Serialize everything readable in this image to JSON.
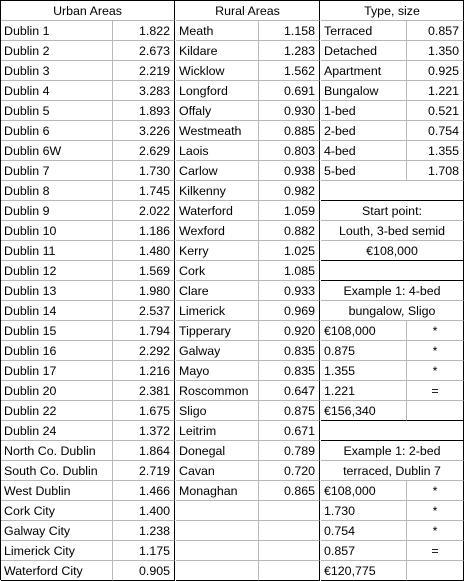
{
  "urban": {
    "header": "Urban Areas",
    "rows": [
      [
        "Dublin 1",
        "1.822"
      ],
      [
        "Dublin 2",
        "2.673"
      ],
      [
        "Dublin 3",
        "2.219"
      ],
      [
        "Dublin 4",
        "3.283"
      ],
      [
        "Dublin 5",
        "1.893"
      ],
      [
        "Dublin 6",
        "3.226"
      ],
      [
        "Dublin 6W",
        "2.629"
      ],
      [
        "Dublin 7",
        "1.730"
      ],
      [
        "Dublin 8",
        "1.745"
      ],
      [
        "Dublin 9",
        "2.022"
      ],
      [
        "Dublin 10",
        "1.186"
      ],
      [
        "Dublin 11",
        "1.480"
      ],
      [
        "Dublin 12",
        "1.569"
      ],
      [
        "Dublin 13",
        "1.980"
      ],
      [
        "Dublin 14",
        "2.537"
      ],
      [
        "Dublin 15",
        "1.794"
      ],
      [
        "Dublin 16",
        "2.292"
      ],
      [
        "Dublin 17",
        "1.216"
      ],
      [
        "Dublin 20",
        "2.381"
      ],
      [
        "Dublin 22",
        "1.675"
      ],
      [
        "Dublin 24",
        "1.372"
      ],
      [
        "North Co. Dublin",
        "1.864"
      ],
      [
        "South Co. Dublin",
        "2.719"
      ],
      [
        "West Dublin",
        "1.466"
      ],
      [
        "Cork City",
        "1.400"
      ],
      [
        "Galway City",
        "1.238"
      ],
      [
        "Limerick City",
        "1.175"
      ],
      [
        "Waterford City",
        "0.905"
      ]
    ]
  },
  "rural": {
    "header": "Rural Areas",
    "rows": [
      [
        "Meath",
        "1.158"
      ],
      [
        "Kildare",
        "1.283"
      ],
      [
        "Wicklow",
        "1.562"
      ],
      [
        "Longford",
        "0.691"
      ],
      [
        "Offaly",
        "0.930"
      ],
      [
        "Westmeath",
        "0.885"
      ],
      [
        "Laois",
        "0.803"
      ],
      [
        "Carlow",
        "0.938"
      ],
      [
        "Kilkenny",
        "0.982"
      ],
      [
        "Waterford",
        "1.059"
      ],
      [
        "Wexford",
        "0.882"
      ],
      [
        "Kerry",
        "1.025"
      ],
      [
        "Cork",
        "1.085"
      ],
      [
        "Clare",
        "0.933"
      ],
      [
        "Limerick",
        "0.969"
      ],
      [
        "Tipperary",
        "0.920"
      ],
      [
        "Galway",
        "0.835"
      ],
      [
        "Mayo",
        "0.835"
      ],
      [
        "Roscommon",
        "0.647"
      ],
      [
        "Sligo",
        "0.875"
      ],
      [
        "Leitrim",
        "0.671"
      ],
      [
        "Donegal",
        "0.789"
      ],
      [
        "Cavan",
        "0.720"
      ],
      [
        "Monaghan",
        "0.865"
      ],
      [
        "",
        ""
      ],
      [
        "",
        ""
      ],
      [
        "",
        ""
      ],
      [
        "",
        ""
      ]
    ]
  },
  "type": {
    "header": "Type, size",
    "rows": [
      [
        "Terraced",
        "0.857"
      ],
      [
        "Detached",
        "1.350"
      ],
      [
        "Apartment",
        "0.925"
      ],
      [
        "Bungalow",
        "1.221"
      ],
      [
        "1-bed",
        "0.521"
      ],
      [
        "2-bed",
        "0.754"
      ],
      [
        "4-bed",
        "1.355"
      ],
      [
        "5-bed",
        "1.708"
      ]
    ],
    "start_point": {
      "line1": "Start point:",
      "line2": "Louth, 3-bed semid",
      "line3": "€108,000"
    },
    "example1": {
      "line1": "Example 1: 4-bed",
      "line2": "bungalow, Sligo",
      "rows": [
        [
          "€108,000",
          "*"
        ],
        [
          "0.875",
          "*"
        ],
        [
          "1.355",
          "*"
        ],
        [
          "1.221",
          "="
        ],
        [
          "€156,340",
          ""
        ]
      ]
    },
    "example2": {
      "line1": "Example 1: 2-bed",
      "line2": "terraced, Dublin 7",
      "rows": [
        [
          "€108,000",
          "*"
        ],
        [
          "1.730",
          "*"
        ],
        [
          "0.754",
          "*"
        ],
        [
          "0.857",
          "="
        ],
        [
          "€120,775",
          ""
        ]
      ]
    }
  }
}
